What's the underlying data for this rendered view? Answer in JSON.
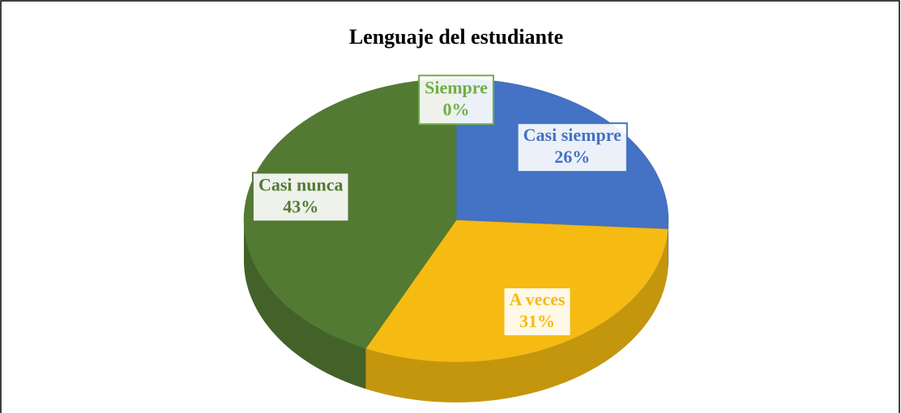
{
  "chart_data": {
    "type": "pie",
    "title": "Lenguaje del estudiante",
    "categories": [
      "Siempre",
      "Casi siempre",
      "A veces",
      "Casi nunca"
    ],
    "values": [
      0,
      26,
      31,
      43
    ],
    "value_labels": [
      "0%",
      "26%",
      "31%",
      "43%"
    ],
    "colors": [
      "#70ad47",
      "#4472c4",
      "#f5bb12",
      "#537a33"
    ]
  }
}
